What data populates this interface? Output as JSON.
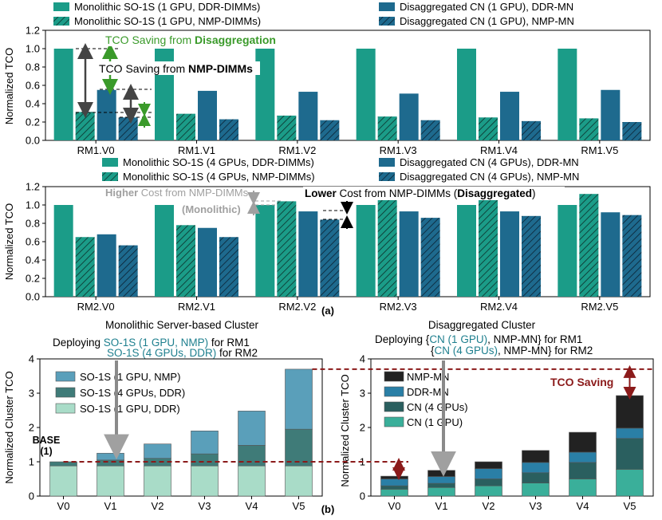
{
  "colors": {
    "mono": "#1b9c88",
    "disagg": "#1e6a8e",
    "dark_red": "#8b1a1a",
    "green": "#3a9a2a",
    "gray": "#a0a0a0",
    "base_stack": [
      "#a9dcc8",
      "#3f7b78",
      "#5a9fba"
    ],
    "disagg_stack": [
      "#3aaf9a",
      "#2a5f5f",
      "#2a7fa6",
      "#222222"
    ]
  },
  "chart_data": [
    {
      "id": "a_top",
      "type": "bar",
      "ylabel": "Normalized TCO",
      "ylim": [
        0,
        1.2
      ],
      "yticks": [
        "0.0",
        "0.2",
        "0.4",
        "0.6",
        "0.8",
        "1.0",
        "1.2"
      ],
      "categories": [
        "RM1.V0",
        "RM1.V1",
        "RM1.V2",
        "RM1.V3",
        "RM1.V4",
        "RM1.V5"
      ],
      "series": [
        {
          "name": "Monolithic SO-1S (1 GPU, DDR-DIMMs)",
          "style": "mono-solid",
          "values": [
            1.0,
            1.0,
            1.0,
            1.0,
            1.0,
            1.0
          ]
        },
        {
          "name": "Monolithic SO-1S (1 GPU, NMP-DIMMs)",
          "style": "mono-hatch",
          "values": [
            0.31,
            0.29,
            0.27,
            0.26,
            0.25,
            0.24
          ]
        },
        {
          "name": "Disaggregated CN (1 GPU), DDR-MN",
          "style": "dis-solid",
          "values": [
            0.55,
            0.54,
            0.53,
            0.51,
            0.53,
            0.55
          ]
        },
        {
          "name": "Disaggregated CN (1 GPU), NMP-MN",
          "style": "dis-hatch",
          "values": [
            0.25,
            0.23,
            0.22,
            0.22,
            0.21,
            0.2
          ]
        }
      ],
      "annotations": {
        "green_prefix": "TCO Saving from ",
        "green_bold": "Disaggregation",
        "black_prefix": "TCO Saving from ",
        "black_bold": "NMP-DIMMs"
      }
    },
    {
      "id": "a_bottom",
      "type": "bar",
      "ylabel": "Normalized TCO",
      "ylim": [
        0,
        1.2
      ],
      "yticks": [
        "0.0",
        "0.2",
        "0.4",
        "0.6",
        "0.8",
        "1.0",
        "1.2"
      ],
      "categories": [
        "RM2.V0",
        "RM2.V1",
        "RM2.V2",
        "RM2.V3",
        "RM2.V4",
        "RM2.V5"
      ],
      "series": [
        {
          "name": "Monolithic SO-1S (4 GPUs, DDR-DIMMs)",
          "style": "mono-solid",
          "values": [
            1.0,
            1.0,
            1.0,
            1.0,
            1.0,
            1.0
          ]
        },
        {
          "name": "Monolithic SO-1S (4 GPUs, NMP-DIMMs)",
          "style": "mono-hatch",
          "values": [
            0.65,
            0.78,
            1.04,
            1.12,
            1.12,
            1.12
          ]
        },
        {
          "name": "Disaggregated CN (4 GPUs), DDR-MN",
          "style": "dis-solid",
          "values": [
            0.68,
            0.75,
            0.93,
            0.93,
            0.93,
            0.92
          ]
        },
        {
          "name": "Disaggregated CN (4 GPUs), NMP-MN",
          "style": "dis-hatch",
          "values": [
            0.56,
            0.65,
            0.84,
            0.86,
            0.88,
            0.89
          ]
        }
      ],
      "annotations": {
        "gray_bold": "Higher",
        "gray_rest": " Cost from NMP-DIMMs",
        "gray_line2": "(Monolithic)",
        "black_bold1": "Lower",
        "black_mid": " Cost from NMP-DIMMs (",
        "black_bold2": "Disaggregated",
        "black_end": ")"
      }
    },
    {
      "id": "b_left",
      "type": "bar",
      "stacked": true,
      "title": "Monolithic Server-based Cluster",
      "ylabel": "Normalized Cluster TCO",
      "ylim": [
        0,
        4
      ],
      "yticks": [
        "0",
        "1",
        "2",
        "3",
        "4"
      ],
      "categories": [
        "V0",
        "V1",
        "V2",
        "V3",
        "V4",
        "V5"
      ],
      "series": [
        {
          "name": "SO-1S (1 GPU, DDR)",
          "values": [
            0.88,
            0.88,
            0.88,
            0.88,
            0.88,
            0.88
          ]
        },
        {
          "name": "SO-1S (4 GPUs, DDR)",
          "values": [
            0.12,
            0.17,
            0.22,
            0.35,
            0.6,
            1.07
          ]
        },
        {
          "name": "SO-1S (1 GPU, NMP)",
          "values": [
            0.0,
            0.2,
            0.42,
            0.67,
            1.0,
            1.75
          ]
        }
      ],
      "legend": [
        "SO-1S (1 GPU, NMP)",
        "SO-1S (4 GPUs, DDR)",
        "SO-1S (1 GPU, DDR)"
      ],
      "base_label": "BASE",
      "base_sub": "(1)",
      "deploy": {
        "prefix": "Deploying ",
        "cfg1": "SO-1S (1 GPU, NMP)",
        "suffix1": " for RM1",
        "cfg2": "SO-1S (4 GPUs, DDR)",
        "suffix2": " for RM2"
      }
    },
    {
      "id": "b_right",
      "type": "bar",
      "stacked": true,
      "title": "Disaggregated Cluster",
      "ylabel": "Normalized Cluster TCO",
      "ylim": [
        0,
        4
      ],
      "yticks": [
        "0",
        "1",
        "2",
        "3",
        "4"
      ],
      "categories": [
        "V0",
        "V1",
        "V2",
        "V3",
        "V4",
        "V5"
      ],
      "series": [
        {
          "name": "CN (1 GPU)",
          "values": [
            0.2,
            0.25,
            0.3,
            0.38,
            0.5,
            0.78
          ]
        },
        {
          "name": "CN (4 GPUs)",
          "values": [
            0.1,
            0.12,
            0.2,
            0.3,
            0.48,
            0.9
          ]
        },
        {
          "name": "DDR-MN",
          "values": [
            0.2,
            0.2,
            0.3,
            0.3,
            0.3,
            0.3
          ]
        },
        {
          "name": "NMP-MN",
          "values": [
            0.08,
            0.18,
            0.2,
            0.35,
            0.58,
            0.95
          ]
        }
      ],
      "legend": [
        "NMP-MN",
        "DDR-MN",
        "CN (4 GPUs)",
        "CN (1 GPU)"
      ],
      "tco_saving_label": "TCO Saving",
      "deploy": {
        "prefix": "Deploying {",
        "cfg1": "CN (1 GPU)",
        "suffix1": ", NMP-MN} for RM1",
        "brace2": "{",
        "cfg2": "CN (4 GPUs)",
        "suffix2": ", NMP-MN} for RM2"
      }
    }
  ],
  "labels": {
    "panel_a": "(a)",
    "panel_b": "(b)"
  }
}
